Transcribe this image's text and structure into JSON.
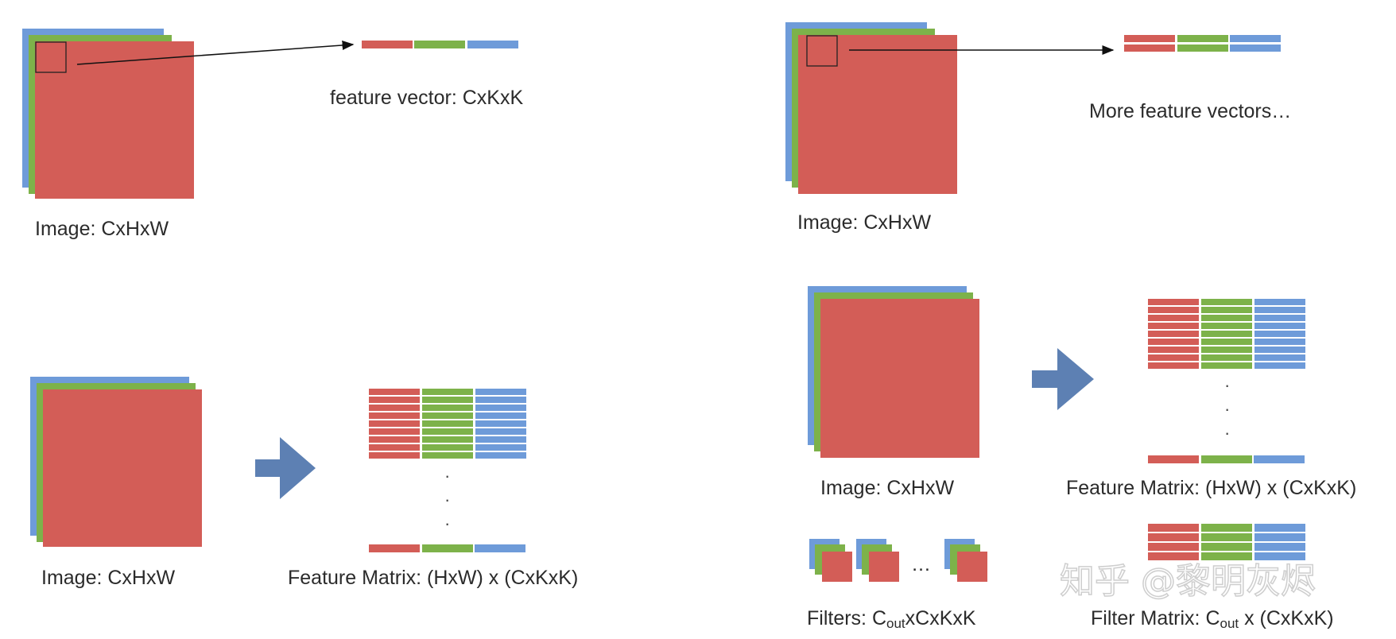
{
  "colors": {
    "red": "#d35d57",
    "green": "#7db24a",
    "blue": "#6e9bd9",
    "arrow": "#5d80b3"
  },
  "panel1": {
    "feature_vector_label": "feature vector: CxKxK",
    "image_label": "Image: CxHxW"
  },
  "panel2": {
    "more_vectors_label": "More feature vectors…",
    "image_label": "Image: CxHxW"
  },
  "panel3": {
    "image_label": "Image: CxHxW",
    "matrix_label": "Feature Matrix: (HxW) x (CxKxK)"
  },
  "panel4": {
    "image_label": "Image: CxHxW",
    "matrix_label": "Feature Matrix: (HxW) x (CxKxK)",
    "filters_prefix": "Filters: C",
    "filters_sub": "out",
    "filters_suffix": "xCxKxK",
    "filters_ellipsis": "…",
    "filter_matrix_prefix": "Filter Matrix: C",
    "filter_matrix_sub": "out",
    "filter_matrix_suffix": " x (CxKxK)"
  },
  "watermark": "知乎 @黎明灰烬"
}
